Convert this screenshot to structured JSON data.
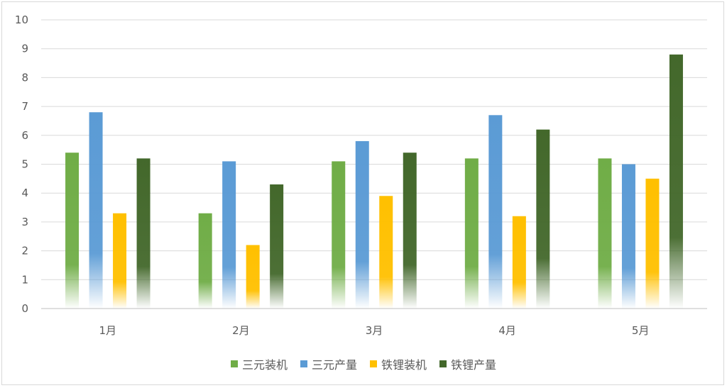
{
  "chart_data": {
    "type": "bar",
    "categories": [
      "1月",
      "2月",
      "3月",
      "4月",
      "5月"
    ],
    "series": [
      {
        "name": "三元装机",
        "values": [
          5.4,
          3.3,
          5.1,
          5.2,
          5.2
        ],
        "color": "#70ad47"
      },
      {
        "name": "三元产量",
        "values": [
          6.8,
          5.1,
          5.8,
          6.7,
          5.0
        ],
        "color": "#5b9bd5"
      },
      {
        "name": "铁锂装机",
        "values": [
          3.3,
          2.2,
          3.9,
          3.2,
          4.5
        ],
        "color": "#ffc000"
      },
      {
        "name": "铁锂产量",
        "values": [
          5.2,
          4.3,
          5.4,
          6.2,
          8.8
        ],
        "color": "#43682b"
      }
    ],
    "yticks": [
      0,
      1,
      2,
      3,
      4,
      5,
      6,
      7,
      8,
      9,
      10
    ],
    "ylim": [
      0,
      10
    ],
    "title": "",
    "xlabel": "",
    "ylabel": "",
    "grid": true,
    "legend_position": "bottom"
  }
}
